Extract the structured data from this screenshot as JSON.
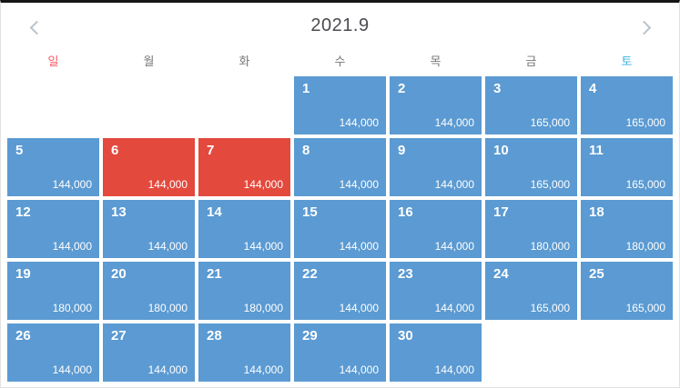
{
  "colors": {
    "day_default_bg": "#5b9ad2",
    "day_selected_bg": "#e4493d",
    "sunday_color": "#fb5861",
    "saturday_color": "#38b3e3",
    "weekday_color": "#777777",
    "title_color": "#4b4b50",
    "chevron_color": "#b9c3cd",
    "top_bar_color": "#161616",
    "border_color": "#e2e2e2"
  },
  "header": {
    "title": "2021.9",
    "prev_icon": "chevron-left",
    "next_icon": "chevron-right"
  },
  "weekdays": [
    {
      "key": "sun",
      "label": "일",
      "type": "sunday"
    },
    {
      "key": "mon",
      "label": "월",
      "type": "normal"
    },
    {
      "key": "tue",
      "label": "화",
      "type": "normal"
    },
    {
      "key": "wed",
      "label": "수",
      "type": "normal"
    },
    {
      "key": "thu",
      "label": "목",
      "type": "normal"
    },
    {
      "key": "fri",
      "label": "금",
      "type": "normal"
    },
    {
      "key": "sat",
      "label": "토",
      "type": "saturday"
    }
  ],
  "calendar": {
    "leading_empty": 3,
    "trailing_empty": 2,
    "days": [
      {
        "day": "1",
        "price": "144,000",
        "selected": false
      },
      {
        "day": "2",
        "price": "144,000",
        "selected": false
      },
      {
        "day": "3",
        "price": "165,000",
        "selected": false
      },
      {
        "day": "4",
        "price": "165,000",
        "selected": false
      },
      {
        "day": "5",
        "price": "144,000",
        "selected": false
      },
      {
        "day": "6",
        "price": "144,000",
        "selected": true
      },
      {
        "day": "7",
        "price": "144,000",
        "selected": true
      },
      {
        "day": "8",
        "price": "144,000",
        "selected": false
      },
      {
        "day": "9",
        "price": "144,000",
        "selected": false
      },
      {
        "day": "10",
        "price": "165,000",
        "selected": false
      },
      {
        "day": "11",
        "price": "165,000",
        "selected": false
      },
      {
        "day": "12",
        "price": "144,000",
        "selected": false
      },
      {
        "day": "13",
        "price": "144,000",
        "selected": false
      },
      {
        "day": "14",
        "price": "144,000",
        "selected": false
      },
      {
        "day": "15",
        "price": "144,000",
        "selected": false
      },
      {
        "day": "16",
        "price": "144,000",
        "selected": false
      },
      {
        "day": "17",
        "price": "180,000",
        "selected": false
      },
      {
        "day": "18",
        "price": "180,000",
        "selected": false
      },
      {
        "day": "19",
        "price": "180,000",
        "selected": false
      },
      {
        "day": "20",
        "price": "180,000",
        "selected": false
      },
      {
        "day": "21",
        "price": "180,000",
        "selected": false
      },
      {
        "day": "22",
        "price": "144,000",
        "selected": false
      },
      {
        "day": "23",
        "price": "144,000",
        "selected": false
      },
      {
        "day": "24",
        "price": "165,000",
        "selected": false
      },
      {
        "day": "25",
        "price": "165,000",
        "selected": false
      },
      {
        "day": "26",
        "price": "144,000",
        "selected": false
      },
      {
        "day": "27",
        "price": "144,000",
        "selected": false
      },
      {
        "day": "28",
        "price": "144,000",
        "selected": false
      },
      {
        "day": "29",
        "price": "144,000",
        "selected": false
      },
      {
        "day": "30",
        "price": "144,000",
        "selected": false
      }
    ]
  }
}
